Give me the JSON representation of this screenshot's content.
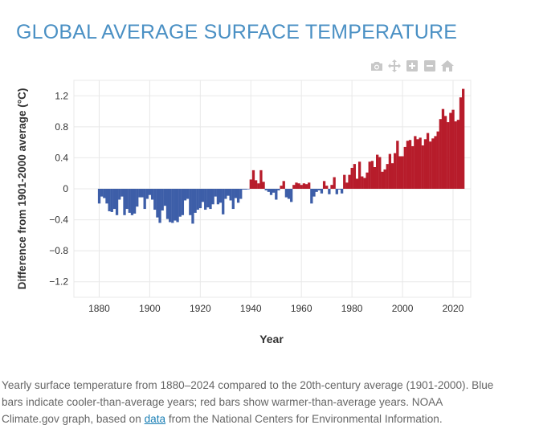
{
  "title": "GLOBAL AVERAGE SURFACE TEMPERATURE",
  "modebar": {
    "icons": [
      "camera-icon",
      "pan-icon",
      "zoom-in-icon",
      "zoom-out-icon",
      "home-icon"
    ],
    "color": "#c8c8c8"
  },
  "caption": {
    "text_before": "Yearly surface temperature from 1880–2024 compared to the 20th-century average (1901-2000). Blue bars indicate cooler-than-average years; red bars show warmer-than-average years. NOAA Climate.gov graph, based on ",
    "link_text": "data",
    "text_after": " from the National Centers for Environmental Information."
  },
  "colors": {
    "cool": "#3d5ea8",
    "warm": "#b71c2b",
    "grid": "#e8e8e8",
    "title": "#4a90c4"
  },
  "chart_data": {
    "type": "bar",
    "title": "",
    "xlabel": "Year",
    "ylabel": "Difference from 1901-2000 average (°C)",
    "xlim": [
      1870,
      2027
    ],
    "ylim": [
      -1.4,
      1.4
    ],
    "x_ticks": [
      1880,
      1900,
      1920,
      1940,
      1960,
      1980,
      2000,
      2020
    ],
    "y_ticks": [
      1.2,
      0.8,
      0.4,
      0,
      -0.4,
      -0.8,
      -1.2
    ],
    "y_tick_labels": [
      "1.2",
      "0.8",
      "0.4",
      "0",
      "−0.4",
      "−0.8",
      "−1.2"
    ],
    "grid": true,
    "x": [
      1880,
      1881,
      1882,
      1883,
      1884,
      1885,
      1886,
      1887,
      1888,
      1889,
      1890,
      1891,
      1892,
      1893,
      1894,
      1895,
      1896,
      1897,
      1898,
      1899,
      1900,
      1901,
      1902,
      1903,
      1904,
      1905,
      1906,
      1907,
      1908,
      1909,
      1910,
      1911,
      1912,
      1913,
      1914,
      1915,
      1916,
      1917,
      1918,
      1919,
      1920,
      1921,
      1922,
      1923,
      1924,
      1925,
      1926,
      1927,
      1928,
      1929,
      1930,
      1931,
      1932,
      1933,
      1934,
      1935,
      1936,
      1937,
      1938,
      1939,
      1940,
      1941,
      1942,
      1943,
      1944,
      1945,
      1946,
      1947,
      1948,
      1949,
      1950,
      1951,
      1952,
      1953,
      1954,
      1955,
      1956,
      1957,
      1958,
      1959,
      1960,
      1961,
      1962,
      1963,
      1964,
      1965,
      1966,
      1967,
      1968,
      1969,
      1970,
      1971,
      1972,
      1973,
      1974,
      1975,
      1976,
      1977,
      1978,
      1979,
      1980,
      1981,
      1982,
      1983,
      1984,
      1985,
      1986,
      1987,
      1988,
      1989,
      1990,
      1991,
      1992,
      1993,
      1994,
      1995,
      1996,
      1997,
      1998,
      1999,
      2000,
      2001,
      2002,
      2003,
      2004,
      2005,
      2006,
      2007,
      2008,
      2009,
      2010,
      2011,
      2012,
      2013,
      2014,
      2015,
      2016,
      2017,
      2018,
      2019,
      2020,
      2021,
      2022,
      2023,
      2024
    ],
    "values": [
      -0.19,
      -0.1,
      -0.12,
      -0.19,
      -0.29,
      -0.3,
      -0.26,
      -0.34,
      -0.14,
      -0.1,
      -0.34,
      -0.26,
      -0.31,
      -0.34,
      -0.32,
      -0.23,
      -0.11,
      -0.11,
      -0.26,
      -0.13,
      -0.08,
      -0.14,
      -0.27,
      -0.37,
      -0.44,
      -0.28,
      -0.22,
      -0.39,
      -0.43,
      -0.44,
      -0.41,
      -0.43,
      -0.36,
      -0.34,
      -0.15,
      -0.13,
      -0.34,
      -0.45,
      -0.31,
      -0.27,
      -0.25,
      -0.17,
      -0.27,
      -0.24,
      -0.26,
      -0.2,
      -0.1,
      -0.2,
      -0.18,
      -0.33,
      -0.13,
      -0.09,
      -0.15,
      -0.26,
      -0.12,
      -0.18,
      -0.13,
      -0.01,
      -0.01,
      0.0,
      0.12,
      0.24,
      0.11,
      0.07,
      0.24,
      0.09,
      -0.02,
      -0.04,
      -0.08,
      -0.05,
      -0.14,
      -0.02,
      0.04,
      0.1,
      -0.11,
      -0.13,
      -0.17,
      0.05,
      0.08,
      0.07,
      0.05,
      0.07,
      0.06,
      0.08,
      -0.19,
      -0.1,
      -0.04,
      -0.02,
      -0.06,
      0.1,
      0.04,
      -0.07,
      0.05,
      0.15,
      -0.07,
      -0.01,
      -0.06,
      0.18,
      0.08,
      0.18,
      0.27,
      0.32,
      0.13,
      0.35,
      0.16,
      0.14,
      0.21,
      0.35,
      0.36,
      0.28,
      0.44,
      0.41,
      0.22,
      0.25,
      0.32,
      0.45,
      0.33,
      0.46,
      0.62,
      0.42,
      0.42,
      0.54,
      0.62,
      0.63,
      0.55,
      0.68,
      0.64,
      0.66,
      0.56,
      0.64,
      0.72,
      0.61,
      0.65,
      0.68,
      0.74,
      0.9,
      1.03,
      0.94,
      0.86,
      0.98,
      1.02,
      0.87,
      0.89,
      1.18,
      1.29
    ]
  }
}
